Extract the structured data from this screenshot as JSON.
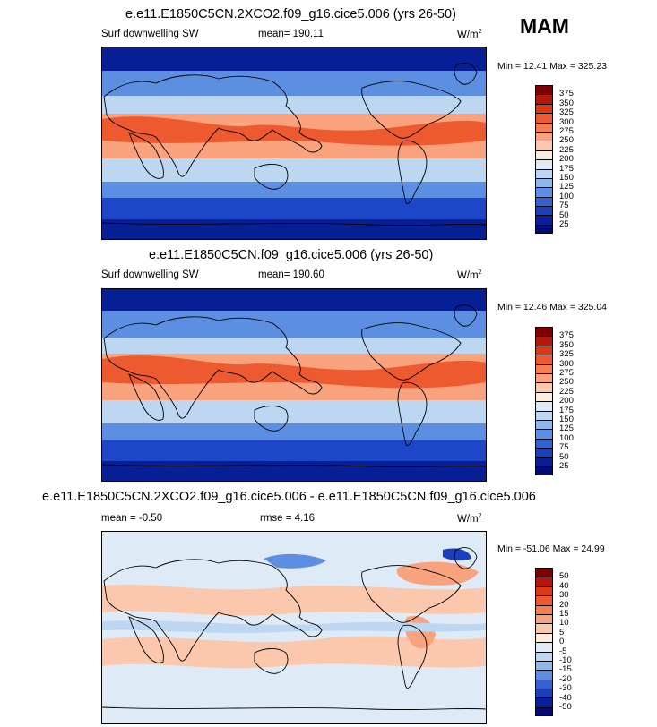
{
  "season": "MAM",
  "panels": [
    {
      "title": "e.e11.E1850C5CN.2XCO2.f09_g16.cice5.006 (yrs 26-50)",
      "left_label": "Surf downwelling SW",
      "center_label": "mean= 190.11",
      "units": "W/m",
      "units_sup": "2",
      "minmax": "Min = 12.41 Max = 325.23",
      "colorbar": {
        "levels": [
          "375",
          "350",
          "325",
          "300",
          "275",
          "250",
          "225",
          "200",
          "175",
          "150",
          "125",
          "100",
          "75",
          "50",
          "25"
        ],
        "colors": [
          "#7f0000",
          "#b2180b",
          "#d93a14",
          "#ee5a2f",
          "#f57e53",
          "#f9a27e",
          "#fcc8ad",
          "#fdebdc",
          "#deebf7",
          "#bdd7f2",
          "#8fb7ec",
          "#5c8fe1",
          "#2f62d4",
          "#1a3fbd",
          "#0a1f95",
          "#000c7a"
        ]
      },
      "map_colors": {
        "polar": "#061f95",
        "south_band": "#1d47c8",
        "midlat": "#5c8fe1",
        "subtrop": "#bdd7f2",
        "tropic": "#f9a27e",
        "hot": "#ee5a2f",
        "land_cool": "#deebf7",
        "land_warm": "#fcc8ad"
      }
    },
    {
      "title": "e.e11.E1850C5CN.f09_g16.cice5.006 (yrs 26-50)",
      "left_label": "Surf downwelling SW",
      "center_label": "mean= 190.60",
      "units": "W/m",
      "units_sup": "2",
      "minmax": "Min = 12.46 Max = 325.04",
      "colorbar": {
        "levels": [
          "375",
          "350",
          "325",
          "300",
          "275",
          "250",
          "225",
          "200",
          "175",
          "150",
          "125",
          "100",
          "75",
          "50",
          "25"
        ],
        "colors": [
          "#7f0000",
          "#b2180b",
          "#d93a14",
          "#ee5a2f",
          "#f57e53",
          "#f9a27e",
          "#fcc8ad",
          "#fdebdc",
          "#deebf7",
          "#bdd7f2",
          "#8fb7ec",
          "#5c8fe1",
          "#2f62d4",
          "#1a3fbd",
          "#0a1f95",
          "#000c7a"
        ]
      },
      "map_colors": {
        "polar": "#061f95",
        "south_band": "#1d47c8",
        "midlat": "#5c8fe1",
        "subtrop": "#bdd7f2",
        "tropic": "#f9a27e",
        "hot": "#ee5a2f",
        "land_cool": "#deebf7",
        "land_warm": "#fcc8ad"
      }
    },
    {
      "title": "e.e11.E1850C5CN.2XCO2.f09_g16.cice5.006 - e.e11.E1850C5CN.f09_g16.cice5.006",
      "left_label": "mean =  -0.50",
      "center_label": "rmse =   4.16",
      "units": "W/m",
      "units_sup": "2",
      "minmax": "Min = -51.06 Max =  24.99",
      "colorbar": {
        "levels": [
          "50",
          "40",
          "30",
          "20",
          "15",
          "10",
          "5",
          "0",
          "-5",
          "-10",
          "-15",
          "-20",
          "-30",
          "-40",
          "-50"
        ],
        "colors": [
          "#7f0000",
          "#b2180b",
          "#d93a14",
          "#ee5a2f",
          "#f57e53",
          "#f9a27e",
          "#fcc8ad",
          "#fdebdc",
          "#deebf7",
          "#bdd7f2",
          "#8fb7ec",
          "#5c8fe1",
          "#2f62d4",
          "#1a3fbd",
          "#0a1f95",
          "#000c7a"
        ]
      },
      "map_colors": {
        "base": "#deebf7",
        "pos": "#fcc8ad",
        "pos2": "#f9a27e",
        "neg": "#bdd7f2",
        "neg2": "#5c8fe1",
        "neg3": "#1a3fbd"
      }
    }
  ]
}
